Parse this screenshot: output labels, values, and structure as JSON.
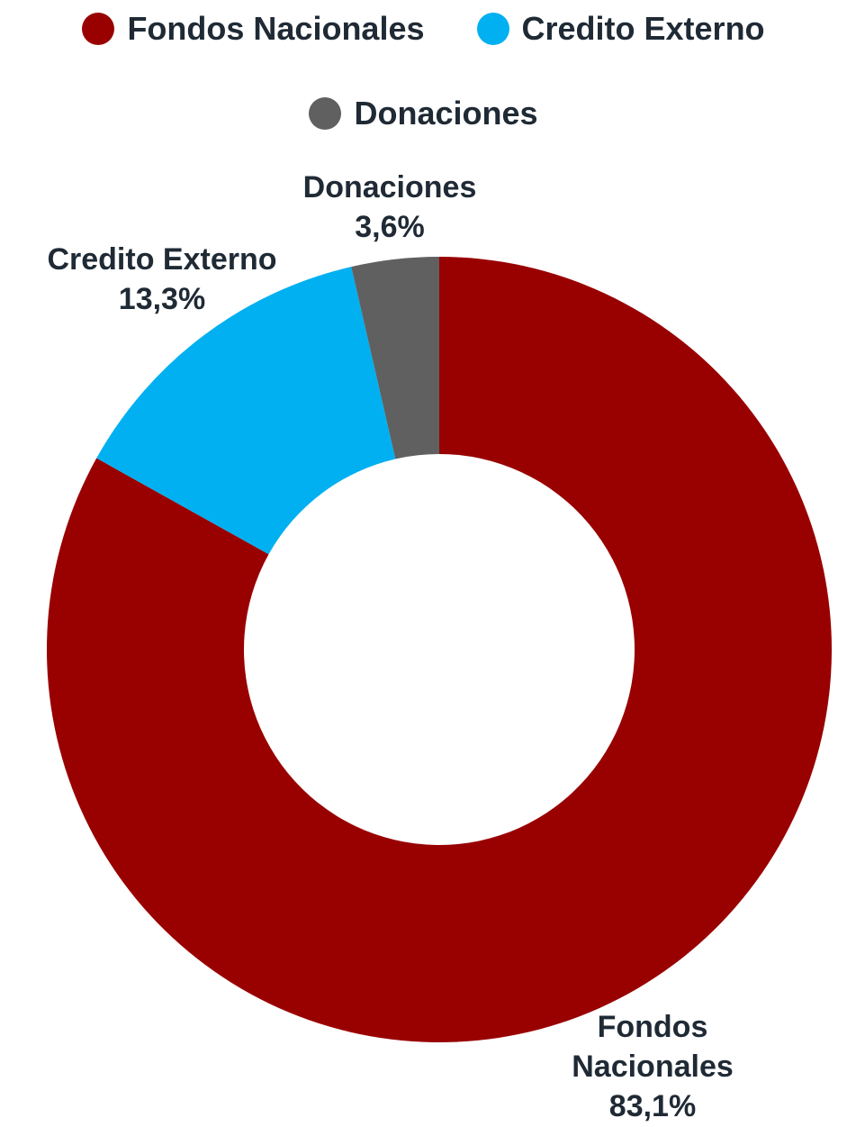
{
  "chart_data": {
    "type": "pie",
    "donut": true,
    "legend_position": "top",
    "slices": [
      {
        "name": "Fondos Nacionales",
        "value": 83.1,
        "value_label": "83,1%",
        "label_lines": [
          "Fondos",
          "Nacionales"
        ],
        "color": "#990000"
      },
      {
        "name": "Credito Externo",
        "value": 13.3,
        "value_label": "13,3%",
        "label_lines": [
          "Credito Externo"
        ],
        "color": "#00b0f0"
      },
      {
        "name": "Donaciones",
        "value": 3.6,
        "value_label": "3,6%",
        "label_lines": [
          "Donaciones"
        ],
        "color": "#606060"
      }
    ]
  }
}
